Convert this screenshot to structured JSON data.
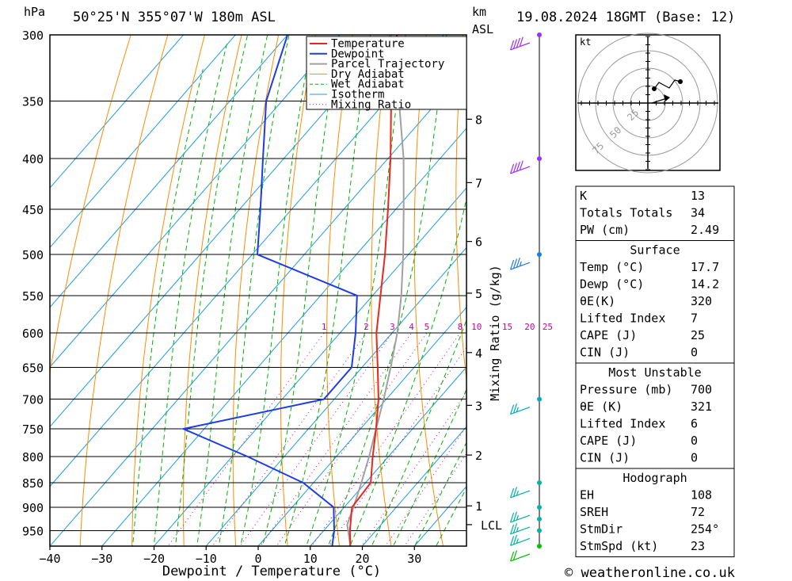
{
  "header": {
    "units_pressure": "hPa",
    "location": "50°25'N  355°07'W  180m  ASL",
    "km_label": "km",
    "asl_label": "ASL",
    "datetime": "19.08.2024  18GMT  (Base: 12)"
  },
  "footer": {
    "credit": "© weatheronline.co.uk"
  },
  "colors": {
    "temperature": "#e8281e",
    "dewpoint": "#1e3ce6",
    "parcel": "#a0a0a0",
    "dry_adiabat": "#ff8c00",
    "wet_adiabat": "#00b400",
    "isotherm": "#1e9be6",
    "mixing_ratio": "#c800a0",
    "wind": "#9b30ff"
  },
  "chart_data": {
    "type": "line",
    "title": "",
    "xlabel": "Dewpoint / Temperature (°C)",
    "ylabel": "hPa",
    "y2label": "Mixing Ratio (g/kg)",
    "xlim": [
      -40,
      40
    ],
    "ylim": [
      1000,
      300
    ],
    "pressure_ticks": [
      300,
      350,
      400,
      450,
      500,
      550,
      600,
      650,
      700,
      750,
      800,
      850,
      900,
      950
    ],
    "temp_ticks": [
      -40,
      -30,
      -20,
      -10,
      0,
      10,
      20,
      30
    ],
    "height_km_ticks": [
      {
        "label": "8",
        "p": 365
      },
      {
        "label": "7",
        "p": 423
      },
      {
        "label": "6",
        "p": 485
      },
      {
        "label": "5",
        "p": 547
      },
      {
        "label": "4",
        "p": 628
      },
      {
        "label": "3",
        "p": 710
      },
      {
        "label": "2",
        "p": 797
      },
      {
        "label": "1",
        "p": 897
      },
      {
        "label": "LCL",
        "p": 937
      }
    ],
    "mixing_ratio_labels": [
      "1",
      "2",
      "3",
      "4",
      "5",
      "8",
      "10",
      "15",
      "20",
      "25"
    ],
    "legend": {
      "placement": "top",
      "entries": [
        "Temperature",
        "Dewpoint",
        "Parcel Trajectory",
        "Dry Adiabat",
        "Wet Adiabat",
        "Isotherm",
        "Mixing Ratio"
      ]
    },
    "series": [
      {
        "name": "Temperature",
        "points": [
          {
            "p": 985,
            "t": 17.7
          },
          {
            "p": 950,
            "t": 15.0
          },
          {
            "p": 900,
            "t": 11.5
          },
          {
            "p": 850,
            "t": 11.0
          },
          {
            "p": 800,
            "t": 7.0
          },
          {
            "p": 750,
            "t": 3.0
          },
          {
            "p": 700,
            "t": -1.5
          },
          {
            "p": 650,
            "t": -7.0
          },
          {
            "p": 600,
            "t": -13.0
          },
          {
            "p": 550,
            "t": -18.5
          },
          {
            "p": 500,
            "t": -24.5
          },
          {
            "p": 450,
            "t": -31.5
          },
          {
            "p": 400,
            "t": -39.5
          },
          {
            "p": 350,
            "t": -49.0
          },
          {
            "p": 300,
            "t": -59.0
          }
        ]
      },
      {
        "name": "Dewpoint",
        "points": [
          {
            "p": 985,
            "t": 14.2
          },
          {
            "p": 950,
            "t": 12.0
          },
          {
            "p": 900,
            "t": 8.0
          },
          {
            "p": 850,
            "t": -2.0
          },
          {
            "p": 800,
            "t": -17.0
          },
          {
            "p": 750,
            "t": -34.0
          },
          {
            "p": 700,
            "t": -12.0
          },
          {
            "p": 650,
            "t": -12.0
          },
          {
            "p": 600,
            "t": -17.0
          },
          {
            "p": 550,
            "t": -23.0
          },
          {
            "p": 500,
            "t": -49.0
          },
          {
            "p": 450,
            "t": -56.0
          },
          {
            "p": 400,
            "t": -64.0
          },
          {
            "p": 350,
            "t": -73.0
          },
          {
            "p": 300,
            "t": -80.0
          }
        ]
      },
      {
        "name": "Parcel Trajectory",
        "points": [
          {
            "p": 985,
            "t": 17.7
          },
          {
            "p": 937,
            "t": 13.5
          },
          {
            "p": 900,
            "t": 11.8
          },
          {
            "p": 850,
            "t": 9.2
          },
          {
            "p": 800,
            "t": 6.3
          },
          {
            "p": 750,
            "t": 3.0
          },
          {
            "p": 700,
            "t": -0.5
          },
          {
            "p": 650,
            "t": -4.5
          },
          {
            "p": 600,
            "t": -9.0
          },
          {
            "p": 550,
            "t": -14.5
          },
          {
            "p": 500,
            "t": -21.0
          },
          {
            "p": 450,
            "t": -28.5
          },
          {
            "p": 400,
            "t": -37.0
          },
          {
            "p": 350,
            "t": -47.5
          },
          {
            "p": 300,
            "t": -59.0
          }
        ]
      }
    ],
    "winds": [
      {
        "p": 985,
        "dir": 290,
        "kt": 20
      },
      {
        "p": 950,
        "dir": 275,
        "kt": 25
      },
      {
        "p": 925,
        "dir": 270,
        "kt": 25
      },
      {
        "p": 900,
        "dir": 270,
        "kt": 25
      },
      {
        "p": 850,
        "dir": 270,
        "kt": 25
      },
      {
        "p": 700,
        "dir": 265,
        "kt": 25
      },
      {
        "p": 500,
        "dir": 260,
        "kt": 35
      },
      {
        "p": 400,
        "dir": 255,
        "kt": 40
      },
      {
        "p": 300,
        "dir": 250,
        "kt": 40
      }
    ],
    "hodograph": {
      "unit_label": "kt",
      "ring_labels": [
        "25",
        "50",
        "75"
      ]
    }
  },
  "indices": {
    "rows": [
      {
        "label": "K",
        "value": "13"
      },
      {
        "label": "Totals Totals",
        "value": "34"
      },
      {
        "label": "PW (cm)",
        "value": "2.49"
      }
    ],
    "surface": {
      "title": "Surface",
      "rows": [
        {
          "label": "Temp (°C)",
          "value": "17.7"
        },
        {
          "label": "Dewp (°C)",
          "value": "14.2"
        },
        {
          "label": "θE(K)",
          "value": "320"
        },
        {
          "label": "Lifted Index",
          "value": "7"
        },
        {
          "label": "CAPE (J)",
          "value": "25"
        },
        {
          "label": "CIN (J)",
          "value": "0"
        }
      ]
    },
    "most_unstable": {
      "title": "Most Unstable",
      "rows": [
        {
          "label": "Pressure (mb)",
          "value": "700"
        },
        {
          "label": "θE (K)",
          "value": "321"
        },
        {
          "label": "Lifted Index",
          "value": "6"
        },
        {
          "label": "CAPE (J)",
          "value": "0"
        },
        {
          "label": "CIN (J)",
          "value": "0"
        }
      ]
    },
    "hodograph": {
      "title": "Hodograph",
      "rows": [
        {
          "label": "EH",
          "value": "108"
        },
        {
          "label": "SREH",
          "value": "72"
        },
        {
          "label": "StmDir",
          "value": "254°"
        },
        {
          "label": "StmSpd (kt)",
          "value": "23"
        }
      ]
    }
  }
}
